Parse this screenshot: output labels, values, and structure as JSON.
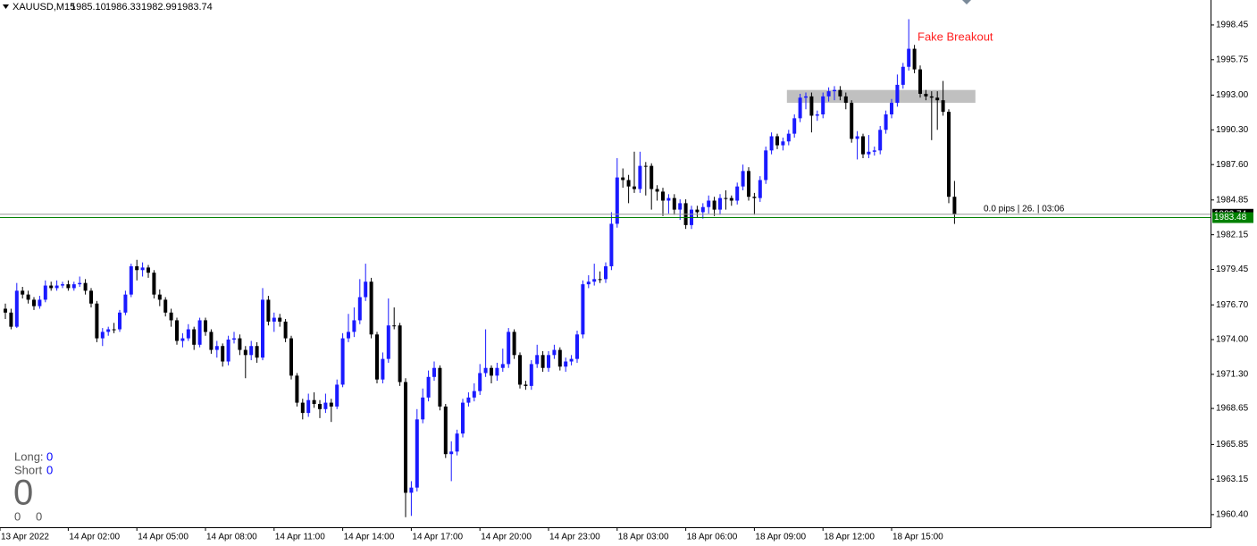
{
  "header": {
    "symbol": "XAUUSD,M15",
    "ohlc_labels": [
      "1985.10",
      "1986.33",
      "1982.99",
      "1983.74"
    ]
  },
  "chart_data": {
    "type": "candlestick",
    "up_color": "#1a1aff",
    "down_color": "#000000",
    "ylim": [
      1959.42,
      2000.39
    ],
    "yticks": [
      1998.45,
      1995.75,
      {
        "value": 1993.0,
        "label": "1993.00"
      },
      {
        "value": 1990.3,
        "label": "1990.30"
      },
      {
        "value": 1987.6,
        "label": "1987.60"
      },
      1984.85,
      1982.15,
      1979.45,
      {
        "value": 1976.7,
        "label": "1976.70"
      },
      {
        "value": 1974.0,
        "label": "1974.00"
      },
      {
        "value": 1971.3,
        "label": "1971.30"
      },
      1968.65,
      1965.85,
      1963.15,
      {
        "value": 1960.4,
        "label": "1960.40"
      }
    ],
    "time_labels": [
      "13 Apr 2022",
      "14 Apr 02:00",
      "14 Apr 05:00",
      "14 Apr 08:00",
      "14 Apr 11:00",
      "14 Apr 14:00",
      "14 Apr 17:00",
      "14 Apr 20:00",
      "14 Apr 23:00",
      "18 Apr 03:00",
      "18 Apr 06:00",
      "18 Apr 09:00",
      "18 Apr 12:00",
      "18 Apr 15:00"
    ],
    "price_lines": [
      {
        "value": 1983.74,
        "color": "#000000"
      },
      {
        "value": 1983.48,
        "color": "#008000"
      }
    ],
    "zone": {
      "top": 1993.4,
      "bottom": 1992.4,
      "color": "#c0c0c0"
    },
    "annotation": "Fake Breakout",
    "info": "0.0 pips | 26. | 03:06",
    "candles": [
      [
        1976.4,
        1976.8,
        1975.6,
        1976.1
      ],
      [
        1976.1,
        1976.4,
        1974.8,
        1975.0
      ],
      [
        1975.0,
        1978.4,
        1974.9,
        1977.8
      ],
      [
        1977.8,
        1978.1,
        1977.2,
        1977.5
      ],
      [
        1977.5,
        1977.8,
        1976.8,
        1977.1
      ],
      [
        1977.1,
        1977.3,
        1976.3,
        1976.6
      ],
      [
        1976.6,
        1977.4,
        1976.4,
        1977.1
      ],
      [
        1977.1,
        1978.6,
        1976.9,
        1978.2
      ],
      [
        1978.2,
        1978.5,
        1977.8,
        1978.0
      ],
      [
        1978.0,
        1978.6,
        1977.8,
        1978.2
      ],
      [
        1978.2,
        1978.5,
        1978.0,
        1978.3
      ],
      [
        1978.3,
        1978.6,
        1977.8,
        1978.0
      ],
      [
        1978.0,
        1978.5,
        1977.8,
        1978.3
      ],
      [
        1978.3,
        1978.9,
        1978.1,
        1978.4
      ],
      [
        1978.4,
        1978.7,
        1977.5,
        1977.8
      ],
      [
        1977.8,
        1978.0,
        1976.5,
        1976.8
      ],
      [
        1976.8,
        1977.0,
        1973.8,
        1974.1
      ],
      [
        1974.1,
        1974.9,
        1973.5,
        1974.6
      ],
      [
        1974.6,
        1975.0,
        1974.3,
        1974.8
      ],
      [
        1974.8,
        1975.3,
        1974.5,
        1974.8
      ],
      [
        1974.8,
        1976.3,
        1974.6,
        1976.1
      ],
      [
        1976.1,
        1977.8,
        1975.9,
        1977.5
      ],
      [
        1977.5,
        1979.9,
        1977.3,
        1979.7
      ],
      [
        1979.7,
        1980.2,
        1978.6,
        1979.4
      ],
      [
        1979.4,
        1980.0,
        1978.9,
        1979.6
      ],
      [
        1979.6,
        1979.8,
        1978.8,
        1979.2
      ],
      [
        1979.2,
        1979.4,
        1977.2,
        1977.5
      ],
      [
        1977.5,
        1977.9,
        1976.6,
        1977.1
      ],
      [
        1977.1,
        1977.3,
        1975.8,
        1976.1
      ],
      [
        1976.1,
        1976.4,
        1975.0,
        1975.5
      ],
      [
        1975.5,
        1975.7,
        1973.6,
        1973.9
      ],
      [
        1973.9,
        1974.5,
        1973.4,
        1974.1
      ],
      [
        1974.1,
        1975.2,
        1973.9,
        1974.8
      ],
      [
        1974.8,
        1975.0,
        1973.2,
        1973.6
      ],
      [
        1973.6,
        1975.7,
        1973.4,
        1975.5
      ],
      [
        1975.5,
        1975.7,
        1974.3,
        1974.6
      ],
      [
        1974.6,
        1974.8,
        1972.9,
        1973.2
      ],
      [
        1973.2,
        1973.9,
        1972.6,
        1973.5
      ],
      [
        1973.5,
        1973.7,
        1971.9,
        1972.3
      ],
      [
        1972.3,
        1974.3,
        1972.0,
        1974.0
      ],
      [
        1974.0,
        1974.6,
        1973.7,
        1974.1
      ],
      [
        1974.1,
        1974.4,
        1972.8,
        1973.2
      ],
      [
        1973.2,
        1973.5,
        1971.0,
        1972.8
      ],
      [
        1972.8,
        1973.9,
        1972.4,
        1973.5
      ],
      [
        1973.5,
        1973.8,
        1972.2,
        1972.6
      ],
      [
        1972.6,
        1978.0,
        1972.4,
        1977.1
      ],
      [
        1977.1,
        1977.4,
        1975.1,
        1975.4
      ],
      [
        1975.4,
        1976.1,
        1974.6,
        1975.7
      ],
      [
        1975.7,
        1976.0,
        1975.0,
        1975.4
      ],
      [
        1975.4,
        1975.6,
        1973.8,
        1974.1
      ],
      [
        1974.1,
        1974.3,
        1970.9,
        1971.2
      ],
      [
        1971.2,
        1971.4,
        1968.8,
        1969.1
      ],
      [
        1969.1,
        1969.4,
        1967.8,
        1968.3
      ],
      [
        1968.3,
        1969.8,
        1968.0,
        1969.3
      ],
      [
        1969.3,
        1969.9,
        1968.7,
        1969.0
      ],
      [
        1969.0,
        1969.3,
        1967.9,
        1968.6
      ],
      [
        1968.6,
        1969.8,
        1968.3,
        1969.1
      ],
      [
        1969.1,
        1969.4,
        1967.6,
        1968.8
      ],
      [
        1968.8,
        1970.9,
        1968.6,
        1970.5
      ],
      [
        1970.5,
        1974.5,
        1970.3,
        1974.1
      ],
      [
        1974.1,
        1976.0,
        1973.8,
        1974.6
      ],
      [
        1974.6,
        1976.5,
        1974.2,
        1975.5
      ],
      [
        1975.5,
        1978.7,
        1975.2,
        1977.3
      ],
      [
        1977.3,
        1979.9,
        1977.0,
        1978.5
      ],
      [
        1978.5,
        1978.8,
        1974.1,
        1974.4
      ],
      [
        1974.4,
        1974.6,
        1970.6,
        1970.9
      ],
      [
        1970.9,
        1973.0,
        1970.6,
        1972.5
      ],
      [
        1972.5,
        1977.2,
        1972.2,
        1975.1
      ],
      [
        1975.1,
        1976.5,
        1974.8,
        1975.1
      ],
      [
        1975.1,
        1975.3,
        1970.4,
        1970.7
      ],
      [
        1970.7,
        1971.0,
        1960.2,
        1962.1
      ],
      [
        1962.1,
        1963.0,
        1960.3,
        1962.5
      ],
      [
        1962.5,
        1968.6,
        1962.2,
        1967.8
      ],
      [
        1967.8,
        1970.2,
        1967.5,
        1969.5
      ],
      [
        1969.5,
        1971.6,
        1969.2,
        1971.1
      ],
      [
        1971.1,
        1972.3,
        1970.8,
        1971.8
      ],
      [
        1971.8,
        1972.0,
        1968.5,
        1968.8
      ],
      [
        1968.8,
        1969.0,
        1964.8,
        1965.1
      ],
      [
        1965.1,
        1966.1,
        1963.0,
        1965.3
      ],
      [
        1965.3,
        1967.0,
        1965.0,
        1966.7
      ],
      [
        1966.7,
        1969.4,
        1966.4,
        1969.1
      ],
      [
        1969.1,
        1969.9,
        1968.8,
        1969.5
      ],
      [
        1969.5,
        1970.6,
        1969.2,
        1970.0
      ],
      [
        1970.0,
        1972.1,
        1969.7,
        1971.4
      ],
      [
        1971.4,
        1974.8,
        1971.1,
        1971.8
      ],
      [
        1971.8,
        1972.0,
        1970.6,
        1971.2
      ],
      [
        1971.2,
        1972.2,
        1970.8,
        1971.8
      ],
      [
        1971.8,
        1973.3,
        1971.5,
        1972.1
      ],
      [
        1972.1,
        1974.9,
        1971.8,
        1974.6
      ],
      [
        1974.6,
        1974.8,
        1972.5,
        1972.8
      ],
      [
        1972.8,
        1973.0,
        1970.2,
        1970.5
      ],
      [
        1970.5,
        1970.8,
        1970.1,
        1970.4
      ],
      [
        1970.4,
        1972.4,
        1970.1,
        1972.1
      ],
      [
        1972.1,
        1973.6,
        1971.8,
        1972.8
      ],
      [
        1972.8,
        1973.1,
        1971.5,
        1971.8
      ],
      [
        1971.8,
        1973.1,
        1971.5,
        1972.8
      ],
      [
        1972.8,
        1973.6,
        1972.5,
        1973.2
      ],
      [
        1973.2,
        1973.4,
        1971.6,
        1971.9
      ],
      [
        1971.9,
        1972.6,
        1971.5,
        1972.3
      ],
      [
        1972.3,
        1972.8,
        1972.0,
        1972.5
      ],
      [
        1972.5,
        1974.7,
        1972.2,
        1974.4
      ],
      [
        1974.4,
        1978.6,
        1974.1,
        1978.3
      ],
      [
        1978.3,
        1979.0,
        1978.0,
        1978.5
      ],
      [
        1978.5,
        1979.9,
        1978.2,
        1978.7
      ],
      [
        1978.7,
        1979.3,
        1978.4,
        1978.7
      ],
      [
        1978.7,
        1980.0,
        1978.4,
        1979.7
      ],
      [
        1979.7,
        1983.9,
        1979.4,
        1983.0
      ],
      [
        1983.0,
        1988.1,
        1982.7,
        1986.6
      ],
      [
        1986.6,
        1987.3,
        1985.8,
        1986.4
      ],
      [
        1986.4,
        1986.8,
        1984.6,
        1985.9
      ],
      [
        1985.9,
        1988.6,
        1985.4,
        1985.7
      ],
      [
        1985.7,
        1988.6,
        1985.4,
        1987.5
      ],
      [
        1987.5,
        1987.8,
        1985.2,
        1987.5
      ],
      [
        1987.5,
        1987.7,
        1984.1,
        1985.7
      ],
      [
        1985.7,
        1986.0,
        1984.8,
        1985.5
      ],
      [
        1985.5,
        1985.8,
        1983.6,
        1984.8
      ],
      [
        1984.8,
        1985.3,
        1983.8,
        1985.0
      ],
      [
        1985.0,
        1985.3,
        1983.7,
        1984.1
      ],
      [
        1984.1,
        1984.9,
        1983.3,
        1984.6
      ],
      [
        1984.6,
        1984.9,
        1982.6,
        1982.9
      ],
      [
        1982.9,
        1984.4,
        1982.6,
        1984.1
      ],
      [
        1984.1,
        1984.4,
        1983.5,
        1983.9
      ],
      [
        1983.9,
        1984.6,
        1983.4,
        1984.3
      ],
      [
        1984.3,
        1985.2,
        1983.8,
        1984.8
      ],
      [
        1984.8,
        1985.1,
        1983.6,
        1984.1
      ],
      [
        1984.1,
        1985.3,
        1983.7,
        1985.0
      ],
      [
        1985.0,
        1985.6,
        1984.1,
        1985.0
      ],
      [
        1985.0,
        1985.2,
        1984.4,
        1984.8
      ],
      [
        1984.8,
        1986.2,
        1984.5,
        1985.9
      ],
      [
        1985.9,
        1987.6,
        1985.6,
        1987.1
      ],
      [
        1987.1,
        1987.4,
        1984.8,
        1985.1
      ],
      [
        1985.1,
        1985.4,
        1983.7,
        1985.0
      ],
      [
        1985.0,
        1986.7,
        1984.7,
        1986.4
      ],
      [
        1986.4,
        1989.0,
        1986.1,
        1988.7
      ],
      [
        1988.7,
        1990.1,
        1988.4,
        1989.8
      ],
      [
        1989.8,
        1990.0,
        1988.8,
        1989.1
      ],
      [
        1989.1,
        1989.7,
        1988.7,
        1989.4
      ],
      [
        1989.4,
        1990.3,
        1989.1,
        1990.0
      ],
      [
        1990.0,
        1991.5,
        1989.7,
        1991.2
      ],
      [
        1991.2,
        1993.1,
        1990.9,
        1992.8
      ],
      [
        1992.8,
        1993.2,
        1991.9,
        1992.9
      ],
      [
        1992.9,
        1993.2,
        1990.1,
        1991.4
      ],
      [
        1991.4,
        1991.8,
        1991.0,
        1991.5
      ],
      [
        1991.5,
        1993.2,
        1991.2,
        1992.9
      ],
      [
        1992.9,
        1993.6,
        1992.5,
        1993.3
      ],
      [
        1993.3,
        1993.7,
        1992.6,
        1993.4
      ],
      [
        1993.4,
        1993.7,
        1992.6,
        1992.9
      ],
      [
        1992.9,
        1993.2,
        1991.9,
        1992.4
      ],
      [
        1992.4,
        1992.6,
        1989.3,
        1989.6
      ],
      [
        1989.6,
        1990.2,
        1988.0,
        1989.8
      ],
      [
        1989.8,
        1990.0,
        1988.1,
        1988.4
      ],
      [
        1988.4,
        1989.9,
        1988.1,
        1988.6
      ],
      [
        1988.6,
        1989.0,
        1988.3,
        1988.7
      ],
      [
        1988.7,
        1990.6,
        1988.4,
        1990.3
      ],
      [
        1990.3,
        1991.8,
        1990.0,
        1991.5
      ],
      [
        1991.5,
        1992.7,
        1991.2,
        1992.4
      ],
      [
        1992.4,
        1994.6,
        1992.1,
        1993.8
      ],
      [
        1993.8,
        1995.5,
        1993.5,
        1995.2
      ],
      [
        1995.2,
        1998.9,
        1994.9,
        1996.6
      ],
      [
        1996.6,
        1996.9,
        1994.7,
        1995.0
      ],
      [
        1995.0,
        1995.3,
        1992.8,
        1993.1
      ],
      [
        1993.1,
        1993.4,
        1992.6,
        1992.9
      ],
      [
        1992.9,
        1993.3,
        1989.5,
        1992.8
      ],
      [
        1992.8,
        1993.3,
        1990.3,
        1992.6
      ],
      [
        1992.6,
        1994.1,
        1991.4,
        1991.7
      ],
      [
        1991.7,
        1991.9,
        1984.6,
        1985.1
      ],
      [
        1985.1,
        1986.33,
        1982.99,
        1983.74
      ]
    ]
  },
  "panel": {
    "long_label": "Long:",
    "long": 0,
    "short_label": "Short",
    "short": 0,
    "total": 0,
    "bottom": [
      0,
      0
    ]
  }
}
